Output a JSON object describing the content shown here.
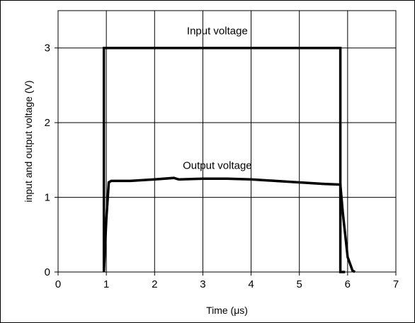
{
  "chart_data": {
    "type": "line",
    "title": "",
    "xlabel": "Time (μs)",
    "ylabel": "input and output voltage (V)",
    "xlim": [
      0,
      7
    ],
    "ylim": [
      0,
      3.5
    ],
    "xticks": [
      0,
      1,
      2,
      3,
      4,
      5,
      6,
      7
    ],
    "yticks": [
      0,
      1,
      2,
      3
    ],
    "xtick_labels": [
      "0",
      "1",
      "2",
      "3",
      "4",
      "5",
      "6",
      "7"
    ],
    "ytick_labels": [
      "0",
      "1",
      "2",
      "3"
    ],
    "grid": true,
    "legend": "none",
    "annotations": [
      "Input voltage",
      "Output voltage"
    ],
    "series": [
      {
        "name": "Input voltage",
        "x": [
          0.95,
          0.95,
          5.85,
          5.85,
          5.95
        ],
        "y": [
          0,
          3.0,
          3.0,
          0,
          0
        ]
      },
      {
        "name": "Output voltage",
        "x": [
          0.95,
          1.0,
          1.05,
          1.1,
          1.5,
          2.0,
          2.4,
          2.5,
          3.0,
          3.5,
          4.0,
          4.5,
          5.0,
          5.5,
          5.85,
          5.9,
          6.0,
          6.1,
          6.15
        ],
        "y": [
          0,
          0.7,
          1.2,
          1.22,
          1.22,
          1.24,
          1.26,
          1.24,
          1.25,
          1.25,
          1.24,
          1.22,
          1.2,
          1.18,
          1.17,
          0.8,
          0.2,
          0.02,
          0
        ]
      }
    ],
    "line_color": "#000000"
  }
}
